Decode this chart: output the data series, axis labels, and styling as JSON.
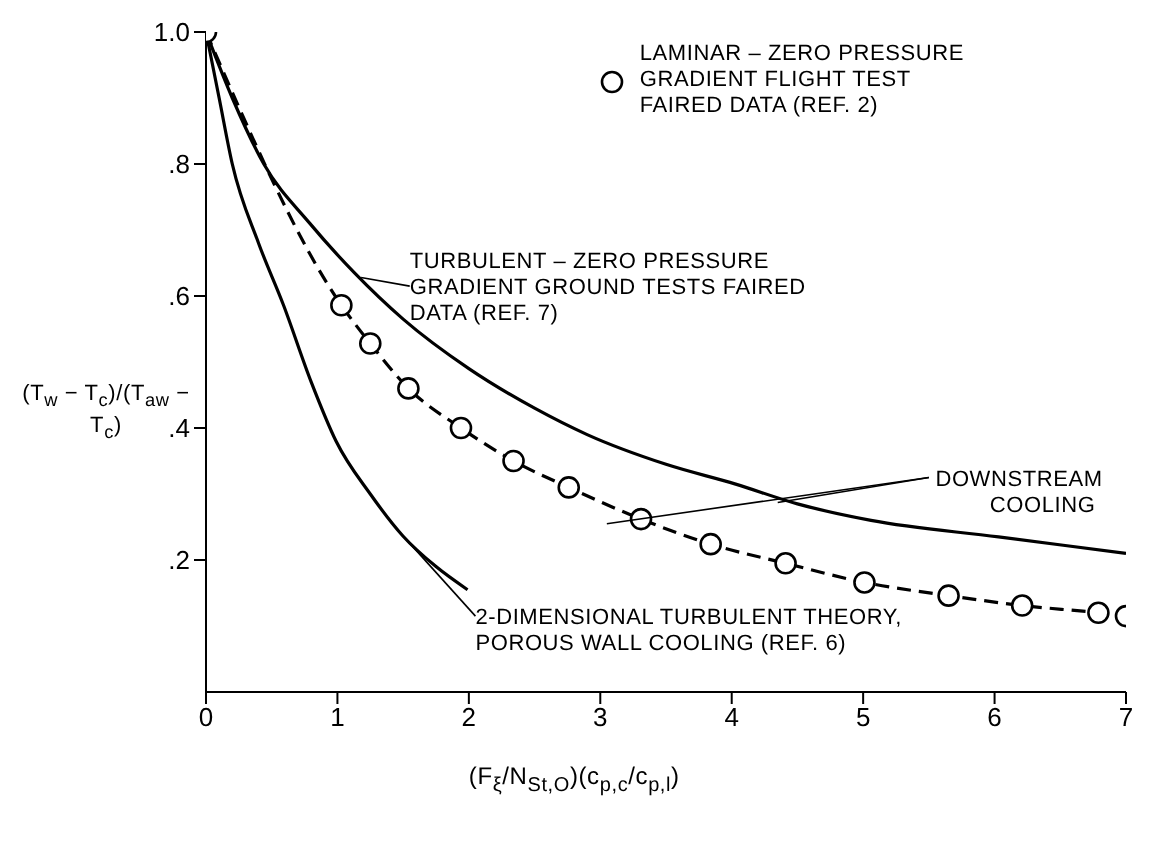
{
  "chart_data": {
    "type": "line",
    "xlabel": "(F$_{ξ}$/N$_{St,O}$)(c$_{p,c}$/c$_{p,l}$)",
    "ylabel": "(T$_{w}$ − T$_{c}$)/(T$_{aw}$ − T$_{c}$)",
    "xlim": [
      0,
      7
    ],
    "xticks": [
      0,
      1,
      2,
      3,
      4,
      5,
      6,
      7
    ],
    "ylim": [
      0,
      1
    ],
    "yticks": [
      {
        "value": 0.2,
        "label": ".2"
      },
      {
        "value": 0.4,
        "label": ".4"
      },
      {
        "value": 0.6,
        "label": ".6"
      },
      {
        "value": 0.8,
        "label": ".8"
      },
      {
        "value": 1,
        "label": "1.0"
      }
    ],
    "legend": "top right",
    "annotations": [
      {
        "text": "DOWNSTREAM COOLING",
        "x": 4.35,
        "y": 0.287
      }
    ],
    "series": [
      {
        "name": "LAMINAR – ZERO PRESSURE GRADIENT FLIGHT TEST FAIRED DATA (REF. 2)",
        "color": "#000000",
        "marker": "circle",
        "line_style": "dashed",
        "x": [
          0,
          1.03,
          1.25,
          1.54,
          1.94,
          2.34,
          2.76,
          3.31,
          3.84,
          4.41,
          5.01,
          5.65,
          6.21,
          6.79,
          7
        ],
        "values": [
          1,
          0.586,
          0.528,
          0.46,
          0.4,
          0.35,
          0.31,
          0.262,
          0.224,
          0.195,
          0.166,
          0.146,
          0.131,
          0.12,
          0.115
        ]
      },
      {
        "name": "TURBULENT – ZERO PRESSURE GRADIENT GROUND TESTS FAIRED DATA (REF. 7)",
        "color": "#000000",
        "marker": "none",
        "line_style": "solid",
        "x": [
          0,
          0.2,
          0.44,
          0.79,
          1.13,
          1.5,
          2,
          2.5,
          2.9,
          3.5,
          4.03,
          4.5,
          5.06,
          6.03,
          7
        ],
        "values": [
          1,
          0.9,
          0.8,
          0.71,
          0.635,
          0.565,
          0.49,
          0.43,
          0.39,
          0.345,
          0.315,
          0.285,
          0.26,
          0.235,
          0.21
        ]
      },
      {
        "name": "2-DIMENSIONAL TURBULENT THEORY, POROUS WALL COOLING (REF. 6)",
        "color": "#000000",
        "marker": "none",
        "line_style": "solid",
        "x": [
          0,
          0.1,
          0.2,
          0.4,
          0.59,
          0.8,
          0.99,
          1.25,
          1.5,
          1.75,
          1.99
        ],
        "values": [
          1,
          0.9,
          0.8,
          0.68,
          0.586,
          0.47,
          0.38,
          0.3,
          0.236,
          0.19,
          0.155
        ]
      }
    ]
  }
}
